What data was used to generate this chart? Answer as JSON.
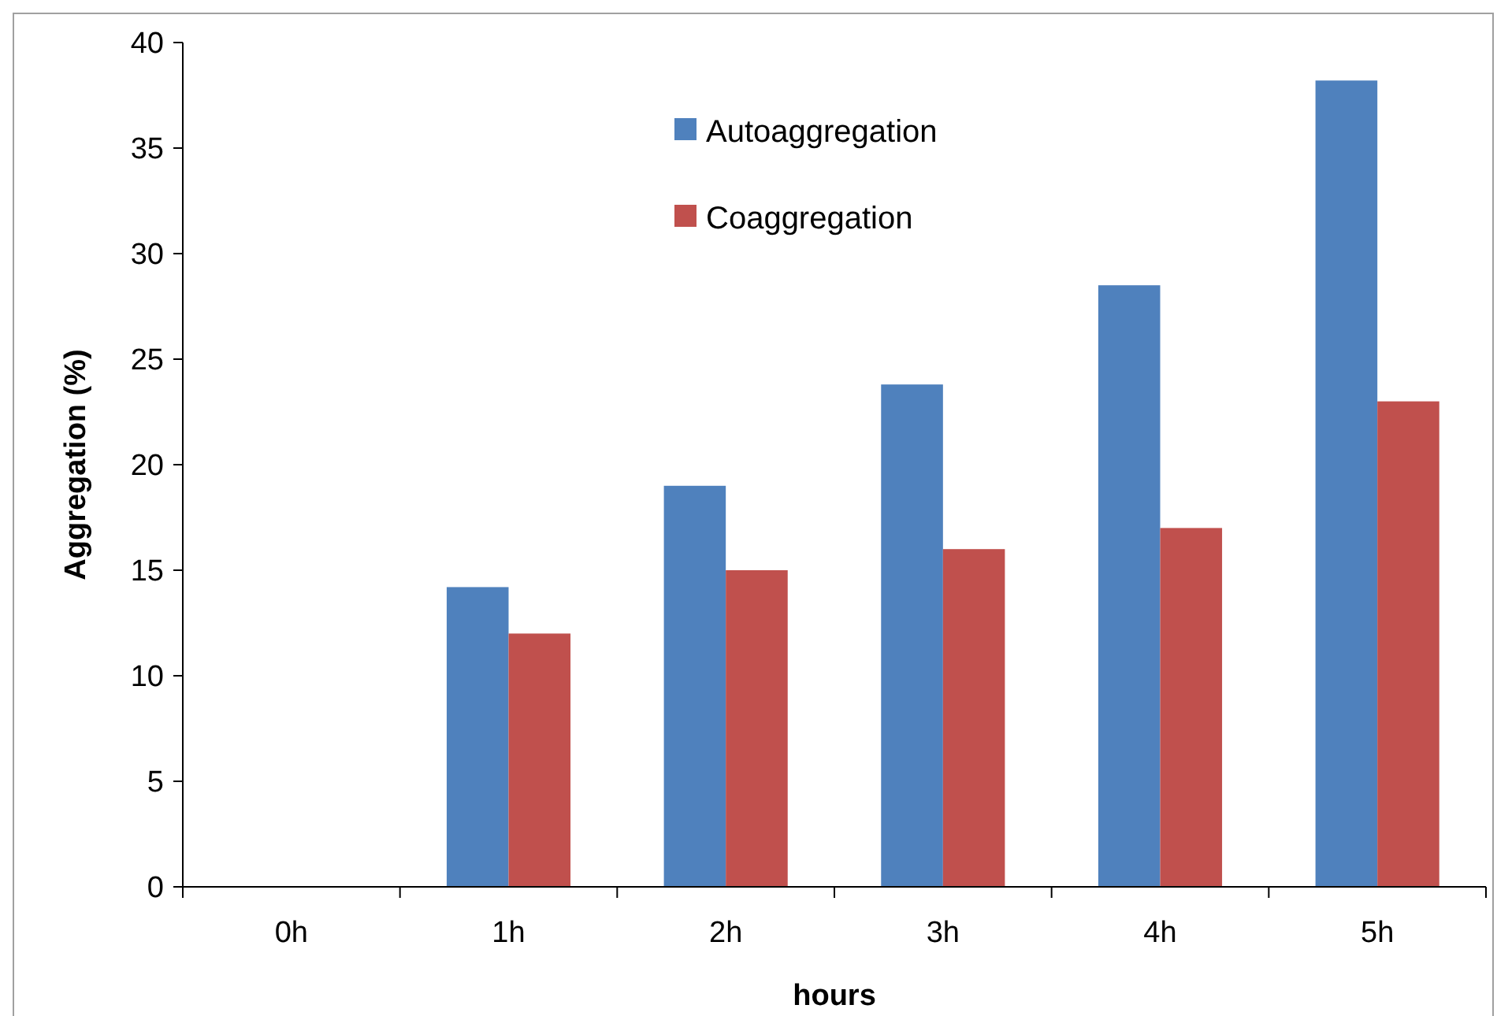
{
  "chart_data": {
    "type": "bar",
    "xlabel": "hours",
    "ylabel": "Aggregation (%)",
    "categories": [
      "0h",
      "1h",
      "2h",
      "3h",
      "4h",
      "5h"
    ],
    "series": [
      {
        "name": "Autoaggregation",
        "color": "#4f81bd",
        "values": [
          0,
          14.2,
          19.0,
          23.8,
          28.5,
          38.2
        ]
      },
      {
        "name": "Coaggregation",
        "color": "#c0504d",
        "values": [
          0,
          12.0,
          15.0,
          16.0,
          17.0,
          23.0
        ]
      }
    ],
    "ylim": [
      0,
      40
    ],
    "yticks": [
      0,
      5,
      10,
      15,
      20,
      25,
      30,
      35,
      40
    ],
    "grid": false,
    "legend": "top"
  }
}
